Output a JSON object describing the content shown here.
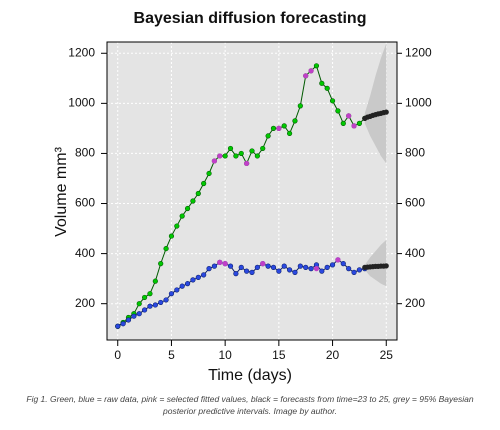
{
  "chart_data": {
    "type": "line",
    "title": "Bayesian diffusion forecasting",
    "xlabel": "Time (days)",
    "ylabel": "Volume mm³",
    "caption": "Fig 1. Green, blue = raw data, pink = selected fitted values, black = forecasts from time=23 to 25, grey = 95% Bayesian posterior predictive intervals. Image by author.",
    "xlim": [
      -1,
      26
    ],
    "ylim": [
      55,
      1245
    ],
    "xticks": [
      0,
      5,
      10,
      15,
      20,
      25
    ],
    "yticks": [
      200,
      400,
      600,
      800,
      1000,
      1200
    ],
    "y2lim": [
      55,
      1245
    ],
    "y2ticks": [
      200,
      400,
      600,
      800,
      1000,
      1200
    ],
    "grid": true,
    "background": "#e4e4e4",
    "bands": [
      {
        "color": "#c9c9c9",
        "x": [
          23,
          23.5,
          24,
          24.5,
          25
        ],
        "lower": [
          920,
          870,
          830,
          790,
          760
        ],
        "upper": [
          960,
          1030,
          1110,
          1180,
          1240
        ]
      },
      {
        "color": "#c9c9c9",
        "x": [
          23,
          23.5,
          24,
          24.5,
          25
        ],
        "lower": [
          335,
          310,
          295,
          280,
          270
        ],
        "upper": [
          355,
          385,
          410,
          435,
          455
        ]
      }
    ],
    "series": [
      {
        "style": "line-points",
        "color": "#00c800",
        "line_color": "#005a00",
        "x": [
          0,
          0.5,
          1,
          1.5,
          2,
          2.5,
          3,
          3.5,
          4,
          4.5,
          5,
          5.5,
          6,
          6.5,
          7,
          7.5,
          8,
          8.5,
          9,
          9.5,
          10,
          10.5,
          11,
          11.5,
          12,
          12.5,
          13,
          13.5,
          14,
          14.5,
          15,
          15.5,
          16,
          16.5,
          17,
          17.5,
          18,
          18.5,
          19,
          19.5,
          20,
          20.5,
          21,
          21.5,
          22,
          22.5,
          23
        ],
        "values": [
          110,
          125,
          145,
          160,
          200,
          225,
          240,
          290,
          360,
          420,
          470,
          510,
          550,
          580,
          610,
          640,
          680,
          720,
          770,
          790,
          790,
          820,
          790,
          800,
          760,
          810,
          790,
          820,
          870,
          900,
          900,
          910,
          880,
          930,
          990,
          1110,
          1130,
          1150,
          1080,
          1060,
          1010,
          970,
          920,
          950,
          910,
          920,
          940
        ]
      },
      {
        "style": "line-points",
        "color": "#2a48e0",
        "line_color": "#0b1f70",
        "x": [
          0,
          0.5,
          1,
          1.5,
          2,
          2.5,
          3,
          3.5,
          4,
          4.5,
          5,
          5.5,
          6,
          6.5,
          7,
          7.5,
          8,
          8.5,
          9,
          9.5,
          10,
          10.5,
          11,
          11.5,
          12,
          12.5,
          13,
          13.5,
          14,
          14.5,
          15,
          15.5,
          16,
          16.5,
          17,
          17.5,
          18,
          18.5,
          19,
          19.5,
          20,
          20.5,
          21,
          21.5,
          22,
          22.5,
          23
        ],
        "values": [
          110,
          120,
          135,
          150,
          160,
          175,
          190,
          195,
          205,
          215,
          240,
          255,
          270,
          280,
          295,
          305,
          315,
          340,
          350,
          365,
          360,
          350,
          320,
          345,
          330,
          325,
          345,
          360,
          350,
          345,
          330,
          350,
          335,
          325,
          350,
          345,
          340,
          355,
          330,
          345,
          355,
          375,
          360,
          340,
          325,
          335,
          340
        ]
      },
      {
        "style": "points",
        "color": "#c040c8",
        "x": [
          9,
          9.5,
          12,
          15,
          17.5,
          18,
          21.5,
          22
        ],
        "values": [
          770,
          790,
          760,
          900,
          1110,
          1130,
          950,
          910
        ]
      },
      {
        "style": "points",
        "color": "#c040c8",
        "x": [
          9.5,
          10,
          13.5,
          18.5,
          20.5
        ],
        "values": [
          365,
          360,
          360,
          340,
          375
        ]
      },
      {
        "style": "points",
        "color": "#222222",
        "x": [
          23,
          23.25,
          23.5,
          23.75,
          24,
          24.25,
          24.5,
          24.75,
          25
        ],
        "values": [
          940,
          945,
          948,
          952,
          955,
          958,
          960,
          963,
          965
        ]
      },
      {
        "style": "points",
        "color": "#222222",
        "x": [
          23,
          23.25,
          23.5,
          23.75,
          24,
          24.25,
          24.5,
          24.75,
          25
        ],
        "values": [
          345,
          346,
          347,
          348,
          349,
          349,
          350,
          350,
          351
        ]
      }
    ]
  }
}
